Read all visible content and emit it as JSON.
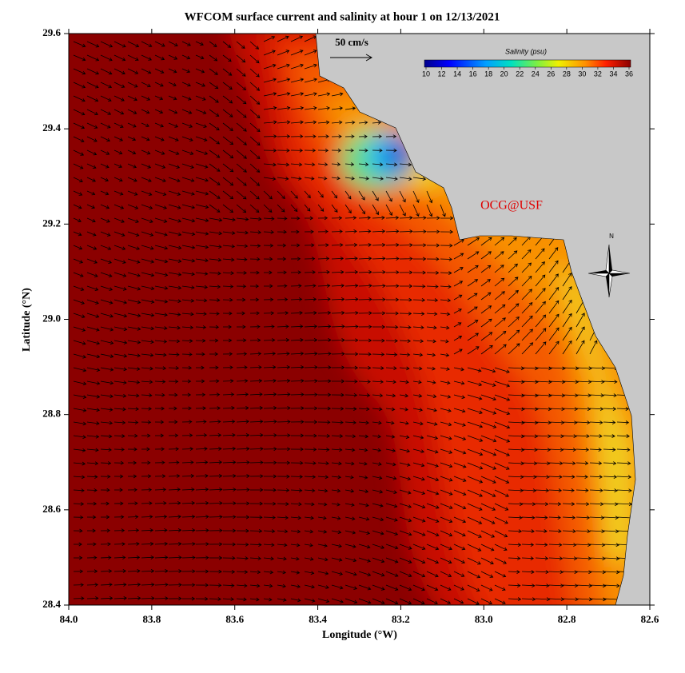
{
  "title": "WFCOM surface current and salinity at hour 1 on 12/13/2021",
  "map": {
    "xlabel": "Longitude (°W)",
    "ylabel": "Latitude (°N)",
    "xlim": [
      84.0,
      82.6
    ],
    "xticks": [
      {
        "value": 84.0,
        "label": "84.0"
      },
      {
        "value": 83.8,
        "label": "83.8"
      },
      {
        "value": 83.6,
        "label": "83.6"
      },
      {
        "value": 83.4,
        "label": "83.4"
      },
      {
        "value": 83.2,
        "label": "83.2"
      },
      {
        "value": 83.0,
        "label": "83.0"
      },
      {
        "value": 82.8,
        "label": "82.8"
      },
      {
        "value": 82.6,
        "label": "82.6"
      }
    ],
    "ylim": [
      28.4,
      29.6
    ],
    "yticks": [
      {
        "value": 28.4,
        "label": "28.4"
      },
      {
        "value": 28.6,
        "label": "28.6"
      },
      {
        "value": 28.8,
        "label": "28.8"
      },
      {
        "value": 29.0,
        "label": "29.0"
      },
      {
        "value": 29.2,
        "label": "29.2"
      },
      {
        "value": 29.4,
        "label": "29.4"
      },
      {
        "value": 29.6,
        "label": "29.6"
      }
    ]
  },
  "colorbar": {
    "title": "Salinity (psu)",
    "lim": [
      10,
      36
    ],
    "ticks": [
      10,
      12,
      14,
      16,
      18,
      20,
      22,
      24,
      26,
      28,
      30,
      32,
      34,
      36
    ]
  },
  "scale_label": "50 cm/s",
  "watermark": "OCG@USF",
  "compass": "N"
}
